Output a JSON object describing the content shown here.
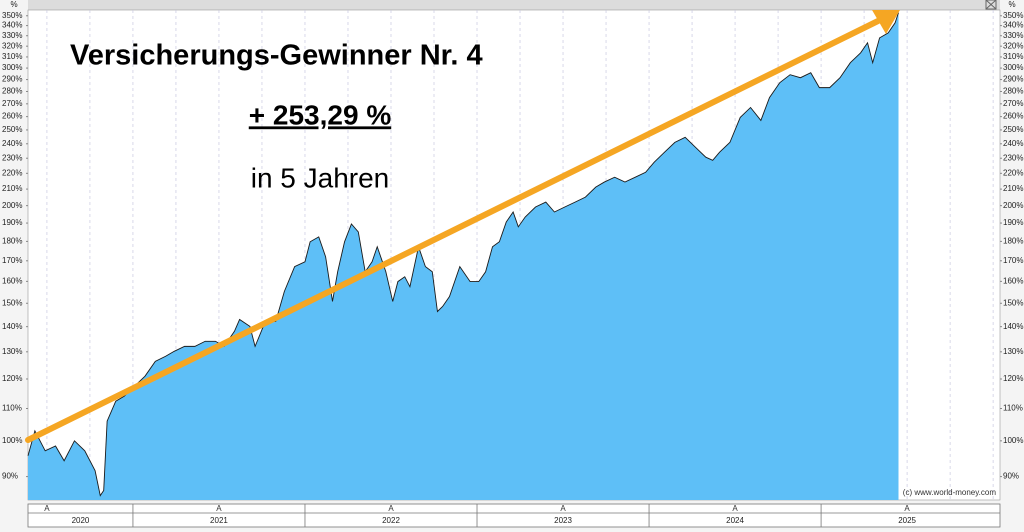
{
  "chart_data": {
    "type": "area",
    "title": "Versicherungs-Gewinner Nr. 4",
    "annotations": [
      "+ 253,29 %",
      "in 5 Jahren"
    ],
    "credit": "(c) www.world-money.com",
    "axis_unit": "%",
    "band_marker": "A",
    "year_bands": [
      "2020",
      "2021",
      "2022",
      "2023",
      "2024",
      "2025"
    ],
    "log_scale": true,
    "color": "#5ebff7",
    "line_color": "#1a1a1a",
    "arrow_color": "#f5a623",
    "xlim": [
      2020.39,
      2026.04
    ],
    "ylim": [
      84,
      356
    ],
    "yticks": [
      {
        "value": 90,
        "label": "90%"
      },
      {
        "value": 100,
        "label": "100%"
      },
      {
        "value": 110,
        "label": "110%"
      },
      {
        "value": 120,
        "label": "120%"
      },
      {
        "value": 130,
        "label": "130%"
      },
      {
        "value": 140,
        "label": "140%"
      },
      {
        "value": 150,
        "label": "150%"
      },
      {
        "value": 160,
        "label": "160%"
      },
      {
        "value": 170,
        "label": "170%"
      },
      {
        "value": 180,
        "label": "180%"
      },
      {
        "value": 190,
        "label": "190%"
      },
      {
        "value": 200,
        "label": "200%"
      },
      {
        "value": 210,
        "label": "210%"
      },
      {
        "value": 220,
        "label": "220%"
      },
      {
        "value": 230,
        "label": "230%"
      },
      {
        "value": 240,
        "label": "240%"
      },
      {
        "value": 250,
        "label": "250%"
      },
      {
        "value": 260,
        "label": "260%"
      },
      {
        "value": 270,
        "label": "270%"
      },
      {
        "value": 280,
        "label": "280%"
      },
      {
        "value": 290,
        "label": "290%"
      },
      {
        "value": 300,
        "label": "300%"
      },
      {
        "value": 310,
        "label": "310%"
      },
      {
        "value": 320,
        "label": "320%"
      },
      {
        "value": 330,
        "label": "330%"
      },
      {
        "value": 340,
        "label": "340%"
      },
      {
        "value": 350,
        "label": "350%"
      }
    ],
    "x": [
      2020.39,
      2020.43,
      2020.49,
      2020.55,
      2020.6,
      2020.66,
      2020.72,
      2020.78,
      2020.81,
      2020.83,
      2020.85,
      2020.9,
      2020.95,
      2021.01,
      2021.07,
      2021.13,
      2021.19,
      2021.24,
      2021.3,
      2021.36,
      2021.42,
      2021.48,
      2021.53,
      2021.59,
      2021.62,
      2021.68,
      2021.71,
      2021.77,
      2021.83,
      2021.88,
      2021.94,
      2022.0,
      2022.03,
      2022.08,
      2022.12,
      2022.16,
      2022.19,
      2022.23,
      2022.27,
      2022.31,
      2022.35,
      2022.39,
      2022.42,
      2022.47,
      2022.51,
      2022.54,
      2022.58,
      2022.61,
      2022.66,
      2022.7,
      2022.74,
      2022.77,
      2022.8,
      2022.84,
      2022.9,
      2022.96,
      2023.01,
      2023.05,
      2023.09,
      2023.13,
      2023.17,
      2023.21,
      2023.24,
      2023.28,
      2023.34,
      2023.4,
      2023.45,
      2023.51,
      2023.57,
      2023.63,
      2023.69,
      2023.74,
      2023.8,
      2023.86,
      2023.92,
      2023.98,
      2024.03,
      2024.09,
      2024.15,
      2024.21,
      2024.27,
      2024.33,
      2024.37,
      2024.41,
      2024.47,
      2024.53,
      2024.59,
      2024.65,
      2024.7,
      2024.76,
      2024.82,
      2024.88,
      2024.94,
      2024.99,
      2025.05,
      2025.11,
      2025.17,
      2025.23,
      2025.27,
      2025.3,
      2025.34,
      2025.39,
      2025.43,
      2025.45
    ],
    "values": [
      95.7,
      103.0,
      97.1,
      98.5,
      94.3,
      100,
      97.1,
      91.6,
      85.1,
      86.4,
      106.0,
      112.4,
      114.1,
      117.5,
      121.0,
      126.4,
      128.3,
      130.2,
      132.1,
      132.1,
      134.1,
      134.1,
      132.1,
      138.1,
      143.0,
      140.1,
      132.1,
      142.2,
      142.2,
      155.3,
      167.1,
      169.5,
      179.8,
      182.4,
      172.0,
      150.8,
      164.6,
      179.8,
      189.5,
      185.1,
      164.6,
      169.5,
      177.2,
      164.6,
      150.8,
      159.9,
      162.2,
      157.5,
      177.2,
      167.1,
      164.6,
      146.4,
      148.6,
      153.0,
      167.1,
      159.9,
      159.9,
      164.6,
      177.2,
      179.8,
      190.6,
      196.3,
      187.9,
      193.4,
      199.2,
      202.1,
      196.3,
      199.2,
      202.1,
      205.1,
      211.2,
      214.4,
      217.5,
      214.4,
      217.5,
      220.7,
      227.3,
      234.1,
      241.0,
      244.6,
      237.5,
      230.7,
      228.6,
      234.1,
      241.0,
      259.4,
      267.1,
      257.1,
      275.0,
      287.4,
      294.2,
      291.6,
      295.9,
      283.2,
      283.2,
      291.6,
      304.8,
      313.8,
      323.2,
      304.8,
      327.9,
      332.8,
      342.7,
      353.29
    ]
  }
}
